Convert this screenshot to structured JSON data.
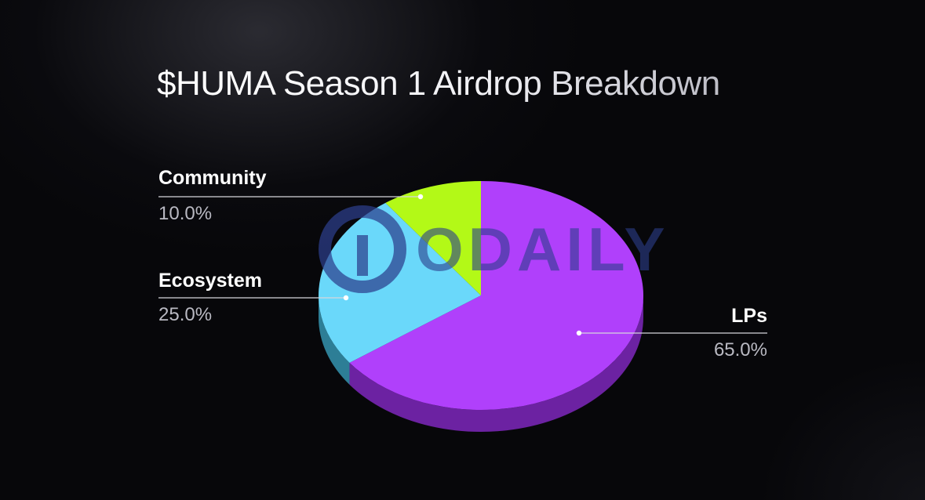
{
  "chart_data": {
    "type": "pie",
    "title": "$HUMA Season 1 Airdrop Breakdown",
    "slices": [
      {
        "label": "LPs",
        "value": 65.0,
        "display": "65.0%",
        "color": "#b040fb",
        "side_color": "#6c22a2"
      },
      {
        "label": "Ecosystem",
        "value": 25.0,
        "display": "25.0%",
        "color": "#6ad8fa",
        "side_color": "#2d7e96"
      },
      {
        "label": "Community",
        "value": 10.0,
        "display": "10.0%",
        "color": "#b3f917",
        "side_color": "#6b9310"
      }
    ],
    "style": "3d",
    "legend": "callouts"
  },
  "watermark": {
    "text": "ODAILY",
    "color": "#2c3e8c"
  },
  "colors": {
    "background": "#07070a",
    "title": "#ffffff",
    "label": "#ffffff",
    "value": "#b9b9c2",
    "leader_line": "#d6d6dc"
  }
}
